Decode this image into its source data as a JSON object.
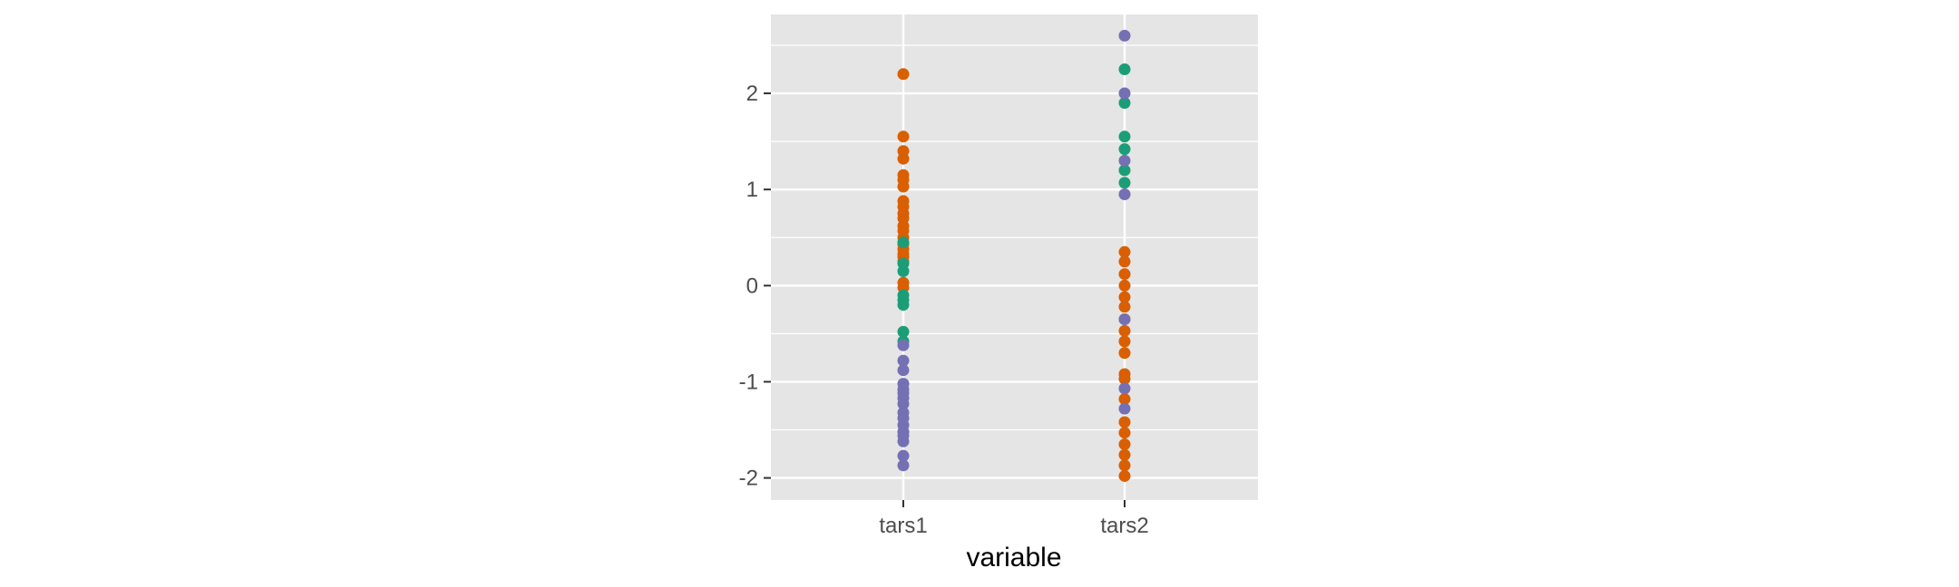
{
  "chart_data": {
    "type": "scatter",
    "title": "",
    "xlabel": "variable",
    "ylabel": "",
    "categories": [
      "tars1",
      "tars2"
    ],
    "ylim": [
      -2.23,
      2.82
    ],
    "yticks": [
      -2,
      -1,
      0,
      1,
      2
    ],
    "ytick_labels": [
      "-2",
      "-1",
      "0",
      "1",
      "2"
    ],
    "xtick_labels": [
      "tars1",
      "tars2"
    ],
    "grid": true,
    "legend": "none",
    "colors": {
      "panel_background": "#e5e5e5",
      "grid": "#ffffff",
      "orange": "#d95f02",
      "green": "#1b9e77",
      "purple": "#7570b3"
    },
    "series": [
      {
        "color": "orange",
        "points": [
          [
            "tars1",
            2.2
          ],
          [
            "tars1",
            1.55
          ],
          [
            "tars1",
            1.4
          ],
          [
            "tars1",
            1.32
          ],
          [
            "tars1",
            1.15
          ],
          [
            "tars1",
            1.1
          ],
          [
            "tars1",
            1.03
          ],
          [
            "tars1",
            0.88
          ],
          [
            "tars1",
            0.82
          ],
          [
            "tars1",
            0.75
          ],
          [
            "tars1",
            0.7
          ],
          [
            "tars1",
            0.62
          ],
          [
            "tars1",
            0.57
          ],
          [
            "tars1",
            0.5
          ],
          [
            "tars1",
            0.43
          ],
          [
            "tars1",
            0.38
          ],
          [
            "tars1",
            0.33
          ],
          [
            "tars1",
            0.3
          ],
          [
            "tars1",
            0.25
          ],
          [
            "tars1",
            0.03
          ],
          [
            "tars1",
            -0.02
          ],
          [
            "tars2",
            0.35
          ],
          [
            "tars2",
            0.25
          ],
          [
            "tars2",
            0.12
          ],
          [
            "tars2",
            0.0
          ],
          [
            "tars2",
            -0.12
          ],
          [
            "tars2",
            -0.22
          ],
          [
            "tars2",
            -0.35
          ],
          [
            "tars2",
            -0.47
          ],
          [
            "tars2",
            -0.58
          ],
          [
            "tars2",
            -0.7
          ],
          [
            "tars2",
            -0.92
          ],
          [
            "tars2",
            -0.97
          ],
          [
            "tars2",
            -1.18
          ],
          [
            "tars2",
            -1.42
          ],
          [
            "tars2",
            -1.53
          ],
          [
            "tars2",
            -1.65
          ],
          [
            "tars2",
            -1.76
          ],
          [
            "tars2",
            -1.87
          ],
          [
            "tars2",
            -1.98
          ]
        ]
      },
      {
        "color": "green",
        "points": [
          [
            "tars1",
            0.45
          ],
          [
            "tars1",
            0.23
          ],
          [
            "tars1",
            0.15
          ],
          [
            "tars1",
            -0.1
          ],
          [
            "tars1",
            -0.15
          ],
          [
            "tars1",
            -0.2
          ],
          [
            "tars1",
            -0.48
          ],
          [
            "tars1",
            -0.58
          ],
          [
            "tars2",
            2.25
          ],
          [
            "tars2",
            1.9
          ],
          [
            "tars2",
            1.55
          ],
          [
            "tars2",
            1.42
          ],
          [
            "tars2",
            1.2
          ],
          [
            "tars2",
            1.07
          ]
        ]
      },
      {
        "color": "purple",
        "points": [
          [
            "tars1",
            -0.62
          ],
          [
            "tars1",
            -0.78
          ],
          [
            "tars1",
            -0.88
          ],
          [
            "tars1",
            -1.02
          ],
          [
            "tars1",
            -1.08
          ],
          [
            "tars1",
            -1.12
          ],
          [
            "tars1",
            -1.17
          ],
          [
            "tars1",
            -1.23
          ],
          [
            "tars1",
            -1.32
          ],
          [
            "tars1",
            -1.38
          ],
          [
            "tars1",
            -1.45
          ],
          [
            "tars1",
            -1.52
          ],
          [
            "tars1",
            -1.56
          ],
          [
            "tars1",
            -1.62
          ],
          [
            "tars1",
            -1.77
          ],
          [
            "tars1",
            -1.87
          ],
          [
            "tars2",
            2.6
          ],
          [
            "tars2",
            2.0
          ],
          [
            "tars2",
            1.3
          ],
          [
            "tars2",
            0.95
          ],
          [
            "tars2",
            -0.35
          ],
          [
            "tars2",
            -1.07
          ],
          [
            "tars2",
            -1.28
          ]
        ]
      }
    ]
  }
}
